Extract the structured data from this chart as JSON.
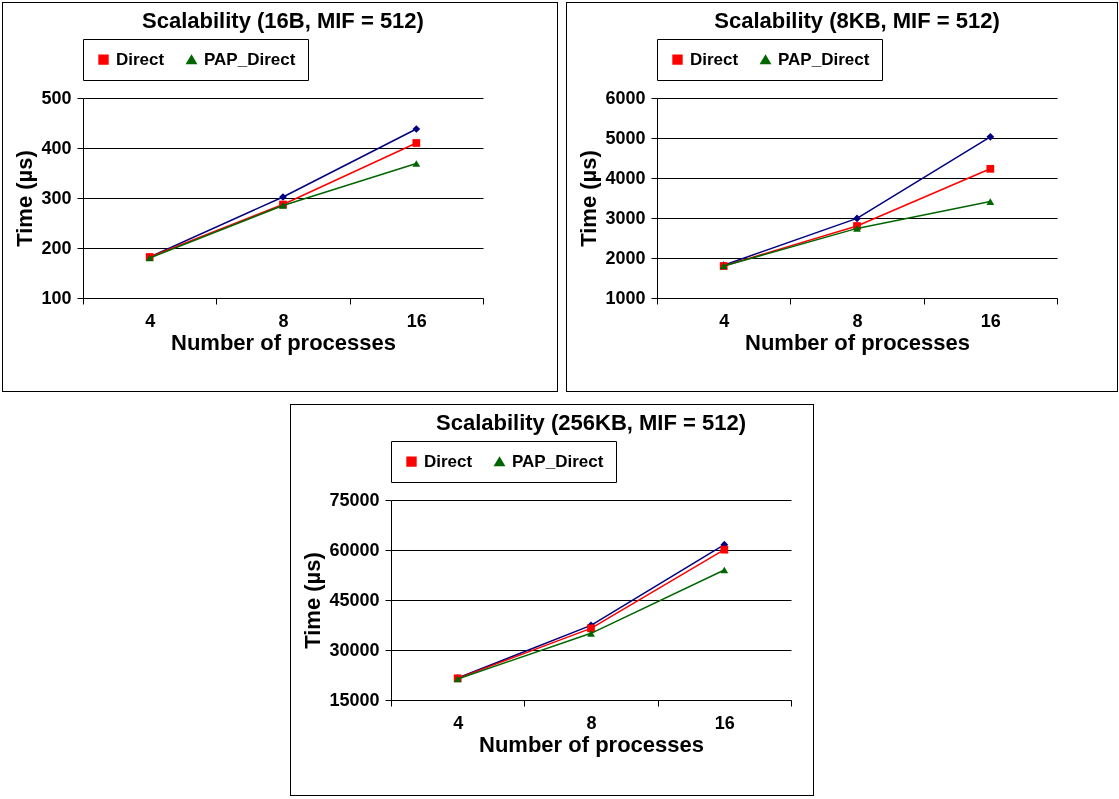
{
  "chart_data": [
    {
      "type": "line",
      "title": "Scalability (16B, MIF = 512)",
      "xlabel": "Number of processes",
      "ylabel": "Time (µs)",
      "categories": [
        "4",
        "8",
        "16"
      ],
      "ylim": [
        100,
        500
      ],
      "yticks": [
        100,
        200,
        300,
        400,
        500
      ],
      "grid": "y",
      "legend": "top",
      "series": [
        {
          "color": "#000080",
          "marker": "diamond",
          "values": [
            182,
            302,
            438
          ]
        },
        {
          "name": "Direct",
          "color": "#ff0000",
          "marker": "square",
          "values": [
            182,
            287,
            410
          ]
        },
        {
          "name": "PAP_Direct",
          "color": "#006600",
          "marker": "triangle",
          "values": [
            180,
            285,
            369
          ]
        }
      ]
    },
    {
      "type": "line",
      "title": "Scalability (8KB, MIF = 512)",
      "xlabel": "Number of processes",
      "ylabel": "Time (µs)",
      "categories": [
        "4",
        "8",
        "16"
      ],
      "ylim": [
        1000,
        6000
      ],
      "yticks": [
        1000,
        2000,
        3000,
        4000,
        5000,
        6000
      ],
      "grid": "y",
      "legend": "top",
      "series": [
        {
          "color": "#000080",
          "marker": "diamond",
          "values": [
            1820,
            2990,
            5030
          ]
        },
        {
          "name": "Direct",
          "color": "#ff0000",
          "marker": "square",
          "values": [
            1800,
            2800,
            4230
          ]
        },
        {
          "name": "PAP_Direct",
          "color": "#006600",
          "marker": "triangle",
          "values": [
            1800,
            2740,
            3410
          ]
        }
      ]
    },
    {
      "type": "line",
      "title": "Scalability (256KB, MIF = 512)",
      "xlabel": "Number of processes",
      "ylabel": "Time (µs)",
      "categories": [
        "4",
        "8",
        "16"
      ],
      "ylim": [
        15000,
        75000
      ],
      "yticks": [
        15000,
        30000,
        45000,
        60000,
        75000
      ],
      "grid": "y",
      "legend": "top",
      "series": [
        {
          "color": "#000080",
          "marker": "diamond",
          "values": [
            21600,
            37400,
            61600
          ]
        },
        {
          "name": "Direct",
          "color": "#ff0000",
          "marker": "square",
          "values": [
            21500,
            36500,
            60100
          ]
        },
        {
          "name": "PAP_Direct",
          "color": "#006600",
          "marker": "triangle",
          "values": [
            21300,
            35000,
            54000
          ]
        }
      ]
    }
  ]
}
